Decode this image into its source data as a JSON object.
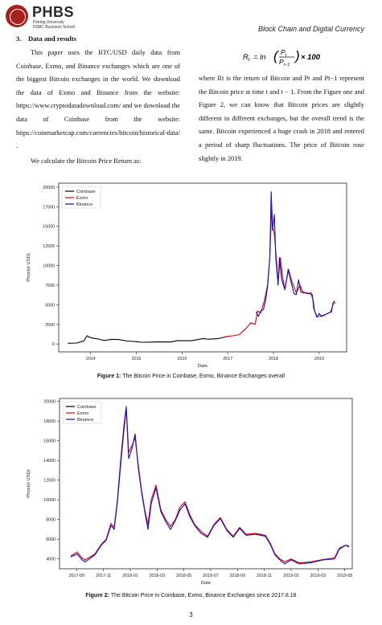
{
  "header": {
    "brand": "PHBS",
    "sub1": "Peking University",
    "sub2": "HSBC Business School",
    "running_title": "Block Chain and Digital Currency"
  },
  "section": {
    "number": "3.",
    "title": "Data and results"
  },
  "left_column": {
    "paragraphs": [
      "This paper uses the BTC/USD daily data from Coinbase, Exmo, and Binance exchanges which are one of the biggest Bitcoin exchanges in the world. We download the data of Exmo and Binance from the website: https://www.cryptodatadownload.com/ and we download the data of Coinbase from the website: https://coinmarketcap.com/currencies/bitcoin/historical-data/ .",
      "We calculate the Bitcoin Price Return as:"
    ]
  },
  "equation": {
    "lhs": "R",
    "rhs_prefix": "= ln",
    "num": "P",
    "den": "P",
    "suffix": "× 100"
  },
  "right_column": {
    "paragraphs": [
      "where Rt is the return of Bitcoin and Pt and Pt−1 represent the Bitcoin price at time t and t − 1. From the Figure one and Figure 2, we can know that Bitcoin prices are slightly different in different exchanges, but the overall trend is the same. Bitcoin experienced a huge crash in 2018 and entered a period of sharp fluctuations. The price of Bitcoin rose slightly in 2019."
    ]
  },
  "figure1": {
    "caption_label": "Figure 1:",
    "caption_text": "The Bitcoin Price in Coinbase, Exmo, Binance Exchanges overall"
  },
  "figure2": {
    "caption_label": "Figure 2:",
    "caption_text": "The Bitcoin Price in Coinbase, Exmo, Binance Exchanges since 2017.8.18"
  },
  "page_number": "3",
  "chart_data": [
    {
      "type": "line",
      "xlabel": "Date",
      "ylabel": "Price(in USD)",
      "x_ticks": [
        "2014",
        "2015",
        "2016",
        "2017",
        "2018",
        "2019"
      ],
      "y_ticks": [
        "0",
        "2500",
        "5000",
        "7500",
        "10000",
        "12500",
        "15000",
        "17500",
        "20000"
      ],
      "ylim": [
        -1000,
        20500
      ],
      "xlim": [
        2013.3,
        2019.6
      ],
      "legend": "top-left",
      "colors": {
        "Coinbase": "#000000",
        "Exmo": "#e00000",
        "Binance": "#1010d0"
      },
      "series": [
        {
          "name": "Coinbase",
          "points": [
            [
              2013.5,
              100
            ],
            [
              2013.7,
              130
            ],
            [
              2013.85,
              400
            ],
            [
              2013.92,
              1050
            ],
            [
              2014.0,
              800
            ],
            [
              2014.15,
              650
            ],
            [
              2014.3,
              450
            ],
            [
              2014.45,
              600
            ],
            [
              2014.6,
              580
            ],
            [
              2014.8,
              380
            ],
            [
              2015.0,
              300
            ],
            [
              2015.1,
              230
            ],
            [
              2015.3,
              240
            ],
            [
              2015.5,
              270
            ],
            [
              2015.75,
              260
            ],
            [
              2015.9,
              420
            ],
            [
              2016.0,
              420
            ],
            [
              2016.2,
              410
            ],
            [
              2016.45,
              680
            ],
            [
              2016.6,
              620
            ],
            [
              2016.8,
              700
            ],
            [
              2016.95,
              900
            ],
            [
              2017.02,
              1000
            ]
          ]
        },
        {
          "name": "Exmo",
          "points": [
            [
              2016.95,
              920
            ],
            [
              2017.1,
              1050
            ],
            [
              2017.25,
              1200
            ],
            [
              2017.4,
              2000
            ],
            [
              2017.5,
              2700
            ],
            [
              2017.6,
              2500
            ],
            [
              2017.65,
              4200
            ],
            [
              2017.72,
              4000
            ],
            [
              2017.8,
              5500
            ],
            [
              2017.87,
              7500
            ],
            [
              2017.92,
              11000
            ],
            [
              2017.96,
              17500
            ],
            [
              2017.98,
              15000
            ],
            [
              2018.02,
              14000
            ],
            [
              2018.06,
              11000
            ],
            [
              2018.1,
              8000
            ],
            [
              2018.15,
              11000
            ],
            [
              2018.2,
              8500
            ],
            [
              2018.25,
              7000
            ],
            [
              2018.33,
              9500
            ],
            [
              2018.4,
              8000
            ],
            [
              2018.5,
              6500
            ],
            [
              2018.58,
              7500
            ],
            [
              2018.65,
              6500
            ],
            [
              2018.75,
              6500
            ],
            [
              2018.85,
              6300
            ],
            [
              2018.88,
              4500
            ],
            [
              2018.95,
              3500
            ],
            [
              2019.05,
              3600
            ],
            [
              2019.15,
              3800
            ],
            [
              2019.25,
              4100
            ],
            [
              2019.32,
              5300
            ],
            [
              2019.36,
              5200
            ]
          ]
        },
        {
          "name": "Binance",
          "points": [
            [
              2017.62,
              4100
            ],
            [
              2017.67,
              3500
            ],
            [
              2017.72,
              4200
            ],
            [
              2017.78,
              4400
            ],
            [
              2017.83,
              5700
            ],
            [
              2017.87,
              7300
            ],
            [
              2017.92,
              11000
            ],
            [
              2017.95,
              19400
            ],
            [
              2017.98,
              14500
            ],
            [
              2018.02,
              16500
            ],
            [
              2018.05,
              11000
            ],
            [
              2018.1,
              7500
            ],
            [
              2018.13,
              11000
            ],
            [
              2018.18,
              8200
            ],
            [
              2018.25,
              6900
            ],
            [
              2018.32,
              9500
            ],
            [
              2018.38,
              8000
            ],
            [
              2018.45,
              6400
            ],
            [
              2018.5,
              6300
            ],
            [
              2018.55,
              8200
            ],
            [
              2018.6,
              6600
            ],
            [
              2018.67,
              6600
            ],
            [
              2018.75,
              6400
            ],
            [
              2018.82,
              6500
            ],
            [
              2018.87,
              5500
            ],
            [
              2018.9,
              4200
            ],
            [
              2018.95,
              3400
            ],
            [
              2019.0,
              3900
            ],
            [
              2019.05,
              3500
            ],
            [
              2019.12,
              3700
            ],
            [
              2019.2,
              3950
            ],
            [
              2019.27,
              4100
            ],
            [
              2019.3,
              5200
            ],
            [
              2019.34,
              5500
            ]
          ]
        }
      ]
    },
    {
      "type": "line",
      "xlabel": "Date",
      "ylabel": "Price(in USD)",
      "x_ticks": [
        "2017-09",
        "2017-11",
        "2018-01",
        "2018-03",
        "2018-05",
        "2018-07",
        "2018-09",
        "2018-11",
        "2019-01",
        "2019-03",
        "2019-05"
      ],
      "y_ticks": [
        "4000",
        "6000",
        "8000",
        "10000",
        "12000",
        "14000",
        "16000",
        "18000",
        "20000"
      ],
      "ylim": [
        3000,
        20300
      ],
      "legend": "top-left",
      "colors": {
        "Coinbase": "#000000",
        "Exmo": "#e00000",
        "Binance": "#1010d0"
      },
      "series": [
        {
          "name": "Exmo",
          "points": [
            [
              2017.63,
              4300
            ],
            [
              2017.67,
              4700
            ],
            [
              2017.7,
              4100
            ],
            [
              2017.72,
              3900
            ],
            [
              2017.78,
              4500
            ],
            [
              2017.82,
              5500
            ],
            [
              2017.85,
              6000
            ],
            [
              2017.88,
              7600
            ],
            [
              2017.9,
              7200
            ],
            [
              2017.92,
              10000
            ],
            [
              2017.94,
              14000
            ],
            [
              2017.96,
              17500
            ],
            [
              2017.975,
              19500
            ],
            [
              2017.99,
              14800
            ],
            [
              2018.01,
              15500
            ],
            [
              2018.03,
              16300
            ],
            [
              2018.05,
              13500
            ],
            [
              2018.07,
              11000
            ],
            [
              2018.09,
              9000
            ],
            [
              2018.11,
              7500
            ],
            [
              2018.13,
              10000
            ],
            [
              2018.16,
              11500
            ],
            [
              2018.19,
              9000
            ],
            [
              2018.22,
              8000
            ],
            [
              2018.25,
              7300
            ],
            [
              2018.28,
              8000
            ],
            [
              2018.31,
              9300
            ],
            [
              2018.34,
              9800
            ],
            [
              2018.37,
              8500
            ],
            [
              2018.4,
              7500
            ],
            [
              2018.44,
              6800
            ],
            [
              2018.48,
              6300
            ],
            [
              2018.52,
              7500
            ],
            [
              2018.56,
              8200
            ],
            [
              2018.6,
              7000
            ],
            [
              2018.64,
              6300
            ],
            [
              2018.68,
              7200
            ],
            [
              2018.72,
              6500
            ],
            [
              2018.78,
              6600
            ],
            [
              2018.84,
              6400
            ],
            [
              2018.87,
              5600
            ],
            [
              2018.9,
              4500
            ],
            [
              2018.93,
              4000
            ],
            [
              2018.96,
              3700
            ],
            [
              2019.0,
              4000
            ],
            [
              2019.05,
              3600
            ],
            [
              2019.12,
              3700
            ],
            [
              2019.2,
              3950
            ],
            [
              2019.27,
              4100
            ],
            [
              2019.3,
              5100
            ],
            [
              2019.34,
              5400
            ],
            [
              2019.36,
              5300
            ]
          ]
        },
        {
          "name": "Binance",
          "points": [
            [
              2017.63,
              4200
            ],
            [
              2017.67,
              4500
            ],
            [
              2017.7,
              3900
            ],
            [
              2017.72,
              3700
            ],
            [
              2017.78,
              4400
            ],
            [
              2017.82,
              5400
            ],
            [
              2017.85,
              5900
            ],
            [
              2017.88,
              7400
            ],
            [
              2017.9,
              7000
            ],
            [
              2017.92,
              9800
            ],
            [
              2017.94,
              13500
            ],
            [
              2017.96,
              17000
            ],
            [
              2017.975,
              19300
            ],
            [
              2017.99,
              14200
            ],
            [
              2018.01,
              15200
            ],
            [
              2018.03,
              16700
            ],
            [
              2018.05,
              13200
            ],
            [
              2018.07,
              10800
            ],
            [
              2018.09,
              8800
            ],
            [
              2018.11,
              7000
            ],
            [
              2018.13,
              9600
            ],
            [
              2018.16,
              11200
            ],
            [
              2018.19,
              8800
            ],
            [
              2018.22,
              7800
            ],
            [
              2018.25,
              7000
            ],
            [
              2018.28,
              7900
            ],
            [
              2018.31,
              9000
            ],
            [
              2018.34,
              9600
            ],
            [
              2018.37,
              8300
            ],
            [
              2018.4,
              7400
            ],
            [
              2018.44,
              6600
            ],
            [
              2018.48,
              6200
            ],
            [
              2018.52,
              7400
            ],
            [
              2018.56,
              8100
            ],
            [
              2018.6,
              6900
            ],
            [
              2018.64,
              6200
            ],
            [
              2018.68,
              7100
            ],
            [
              2018.72,
              6400
            ],
            [
              2018.78,
              6500
            ],
            [
              2018.84,
              6300
            ],
            [
              2018.87,
              5500
            ],
            [
              2018.9,
              4400
            ],
            [
              2018.93,
              3900
            ],
            [
              2018.96,
              3500
            ],
            [
              2019.0,
              3900
            ],
            [
              2019.05,
              3500
            ],
            [
              2019.12,
              3600
            ],
            [
              2019.2,
              3900
            ],
            [
              2019.27,
              4000
            ],
            [
              2019.3,
              5000
            ],
            [
              2019.34,
              5400
            ],
            [
              2019.36,
              5200
            ]
          ]
        }
      ]
    }
  ]
}
